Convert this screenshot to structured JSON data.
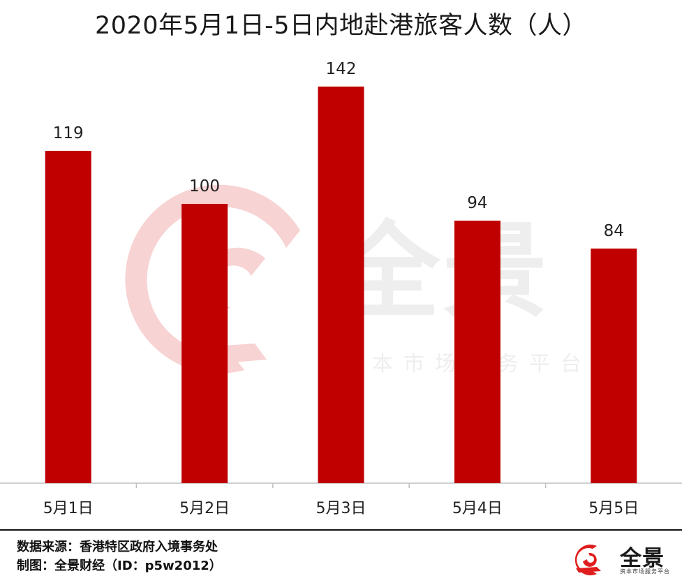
{
  "title": "2020年5月1日-5日内地赴港旅客人数（人）",
  "colors": {
    "bar": "#c00000",
    "axis": "#bfbfbf",
    "watermark_red": "#f7d3d3",
    "brand_red": "#e01e1e"
  },
  "watermark": {
    "text_big": "全景",
    "text_small": "资本市场服务平台"
  },
  "footer": {
    "source": "数据来源：香港特区政府入境事务处",
    "author": "制图：全景财经（ID：p5w2012）"
  },
  "brand": {
    "name": "全景",
    "tagline": "资本市场服务平台",
    "logo_icon": "quanjing-logo-icon"
  },
  "chart_data": {
    "type": "bar",
    "title": "2020年5月1日-5日内地赴港旅客人数（人）",
    "categories": [
      "5月1日",
      "5月2日",
      "5月3日",
      "5月4日",
      "5月5日"
    ],
    "values": [
      119,
      100,
      142,
      94,
      84
    ],
    "data_labels": [
      "119",
      "100",
      "142",
      "94",
      "84"
    ],
    "xlabel": "",
    "ylabel": "",
    "ylim": [
      0,
      160
    ],
    "grid": false,
    "legend": "none"
  }
}
